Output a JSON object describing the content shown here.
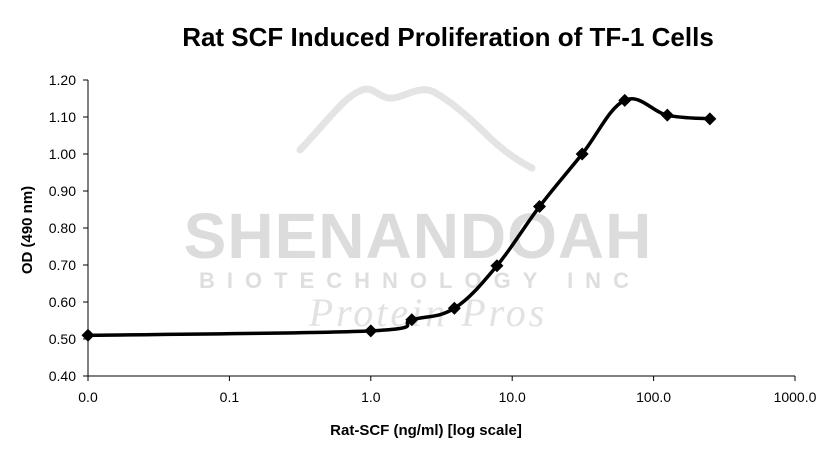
{
  "chart_data": {
    "type": "line",
    "title": "Rat SCF Induced Proliferation of TF-1 Cells",
    "xlabel": "Rat-SCF (ng/ml) [log scale]",
    "ylabel": "OD (490 nm)",
    "x_scale": "log",
    "xlim": [
      0.01,
      1000
    ],
    "ylim": [
      0.4,
      1.2
    ],
    "x_tick_labels": [
      "0.0",
      "0.1",
      "1.0",
      "10.0",
      "100.0",
      "1000.0"
    ],
    "y_tick_labels": [
      "0.40",
      "0.50",
      "0.60",
      "0.70",
      "0.80",
      "0.90",
      "1.00",
      "1.10",
      "1.20"
    ],
    "grid": false,
    "legend": "none",
    "marker": "diamond",
    "line_color": "#000000",
    "series": [
      {
        "x": [
          0.01,
          1.0,
          1.95,
          3.9,
          7.8,
          15.6,
          31.25,
          62.5,
          125,
          250
        ],
        "y": [
          0.51,
          0.522,
          0.552,
          0.583,
          0.698,
          0.858,
          1.0,
          1.145,
          1.105,
          1.095
        ]
      }
    ]
  },
  "watermark": {
    "line1": "SHENANDOAH",
    "line2": "BIOTECHNOLOGY INC",
    "line3": "Protein Pros"
  }
}
